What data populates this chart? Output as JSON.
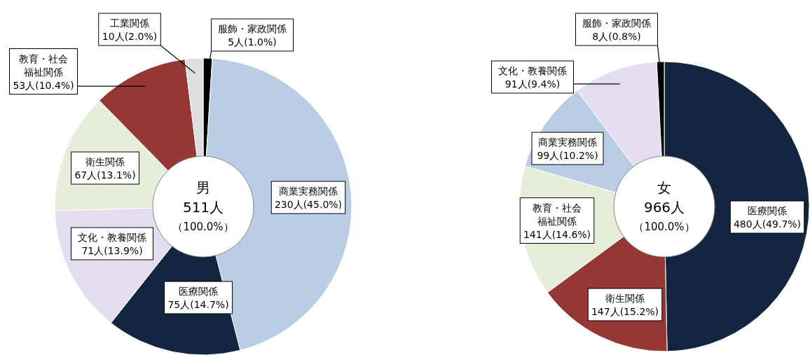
{
  "chart_data": [
    {
      "type": "donut",
      "title": "男",
      "annotations": [
        "511人",
        "（100.0%）"
      ],
      "categories": [
        "服飾・家政関係",
        "商業実務関係",
        "医療関係",
        "文化・教養関係",
        "衛生関係",
        "教育・社会福祉関係",
        "工業関係"
      ],
      "values": [
        5,
        230,
        75,
        71,
        67,
        53,
        10
      ],
      "value_labels": [
        "5人(1.0%)",
        "230人(45.0%)",
        "75人(14.7%)",
        "71人(13.9%)",
        "67人(13.1%)",
        "53人(10.4%)",
        "10人(2.0%)"
      ],
      "colors": [
        "#000000",
        "#b9cde5",
        "#13253f",
        "#e2ddef",
        "#e6eed9",
        "#953735",
        "#dedede"
      ]
    },
    {
      "type": "donut",
      "title": "女",
      "annotations": [
        "966人",
        "（100.0%）"
      ],
      "categories": [
        "医療関係",
        "衛生関係",
        "教育・社会福祉関係",
        "商業実務関係",
        "文化・教養関係",
        "服飾・家政関係"
      ],
      "values": [
        480,
        147,
        141,
        99,
        91,
        8
      ],
      "value_labels": [
        "480人(49.7%)",
        "147人(15.2%)",
        "141人(14.6%)",
        "99人(10.2%)",
        "91人(9.4%)",
        "8人(0.8%)"
      ],
      "colors": [
        "#13253f",
        "#953735",
        "#e6eed9",
        "#b9cde5",
        "#e2ddef",
        "#000000"
      ]
    }
  ]
}
